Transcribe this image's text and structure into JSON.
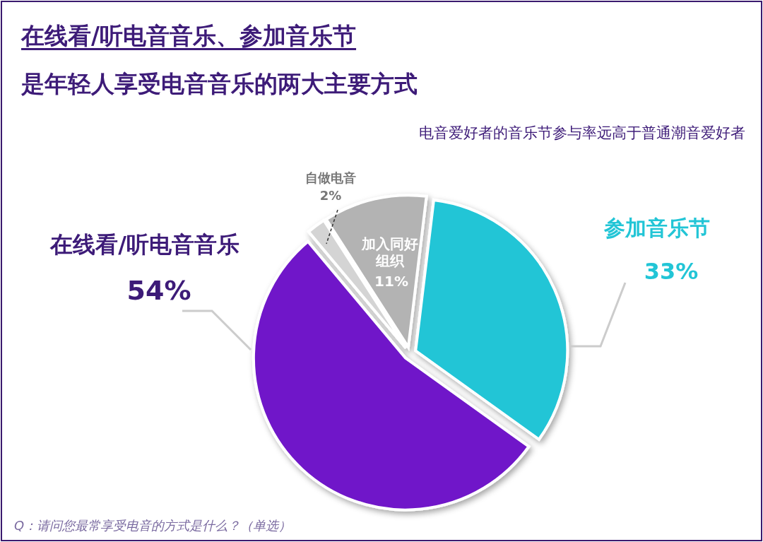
{
  "chart_data": {
    "type": "pie",
    "title": "在线看/听电音音乐、参加音乐节",
    "subtitle": "是年轻人享受电音音乐的两大主要方式",
    "categories": [
      "参加音乐节",
      "在线看/听电音音乐",
      "自做电音",
      "加入同好组织"
    ],
    "values": [
      33,
      54,
      2,
      11
    ],
    "value_labels": [
      "33%",
      "54%",
      "2%",
      "11%"
    ],
    "colors": [
      "#22c5d6",
      "#7019c9",
      "#d4d4d4",
      "#b3b3b3"
    ],
    "annotations": [
      "电音爱好者的音乐节参与率远高于普通潮音爱好者",
      "Q：请问您最常享受电音的方式是什么？（单选）"
    ]
  }
}
